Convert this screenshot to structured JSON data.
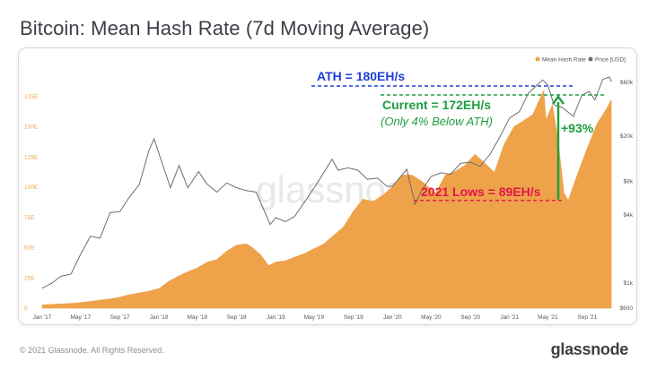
{
  "page": {
    "title": "Bitcoin: Mean Hash Rate (7d Moving Average)",
    "copyright": "© 2021 Glassnode. All Rights Reserved.",
    "brand": "glassnode",
    "watermark": "glassnode"
  },
  "colors": {
    "hash_rate": "#eea24a",
    "price": "#6d6d6d",
    "ath": "#1f3fd6",
    "current": "#1e9e40",
    "lows": "#e0164a",
    "gain": "#1e9e40"
  },
  "chart_data": {
    "type": "area",
    "title": "Bitcoin: Mean Hash Rate (7d Moving Average)",
    "legend": {
      "placement": "top-right",
      "entries": [
        "Mean Hash Rate",
        "Price [USD]"
      ]
    },
    "x_ticks": [
      "Jan '17",
      "May '17",
      "Sep '17",
      "Jan '18",
      "May '18",
      "Sep '18",
      "Jan '19",
      "May '19",
      "Sep '19",
      "Jan '20",
      "May '20",
      "Sep '20",
      "Jan '21",
      "May '21",
      "Sep '21"
    ],
    "y_left": {
      "ticks": [
        "0",
        "25E",
        "50E",
        "75E",
        "100E",
        "125E",
        "150E",
        "175E"
      ],
      "range": [
        0,
        200
      ],
      "unit": "EH/s"
    },
    "y_right": {
      "ticks": [
        "$600",
        "$1k",
        "$4k",
        "$8k",
        "$20k",
        "$60k"
      ],
      "values": [
        600,
        1000,
        4000,
        8000,
        20000,
        60000
      ],
      "scale": "log"
    },
    "grid": false,
    "series": [
      {
        "name": "Mean Hash Rate",
        "axis": "left",
        "points": [
          [
            "2017-01-01",
            2.5
          ],
          [
            "2017-02-01",
            3
          ],
          [
            "2017-03-01",
            3.4
          ],
          [
            "2017-04-01",
            3.8
          ],
          [
            "2017-05-01",
            4.5
          ],
          [
            "2017-06-01",
            5.5
          ],
          [
            "2017-07-01",
            6.5
          ],
          [
            "2017-08-01",
            7.5
          ],
          [
            "2017-09-01",
            9
          ],
          [
            "2017-10-01",
            11
          ],
          [
            "2017-11-01",
            12.5
          ],
          [
            "2017-12-01",
            14
          ],
          [
            "2018-01-01",
            16
          ],
          [
            "2018-02-01",
            22
          ],
          [
            "2018-03-01",
            26
          ],
          [
            "2018-04-01",
            30
          ],
          [
            "2018-05-01",
            33
          ],
          [
            "2018-06-01",
            38
          ],
          [
            "2018-07-01",
            40
          ],
          [
            "2018-08-01",
            47
          ],
          [
            "2018-09-01",
            52
          ],
          [
            "2018-10-01",
            53
          ],
          [
            "2018-10-20",
            50
          ],
          [
            "2018-11-15",
            44
          ],
          [
            "2018-12-10",
            35
          ],
          [
            "2019-01-01",
            38
          ],
          [
            "2019-02-01",
            39
          ],
          [
            "2019-03-01",
            42
          ],
          [
            "2019-04-01",
            45
          ],
          [
            "2019-05-01",
            49
          ],
          [
            "2019-06-01",
            53
          ],
          [
            "2019-07-01",
            60
          ],
          [
            "2019-08-01",
            67
          ],
          [
            "2019-09-01",
            80
          ],
          [
            "2019-10-01",
            90
          ],
          [
            "2019-11-01",
            88
          ],
          [
            "2019-12-01",
            93
          ],
          [
            "2020-01-01",
            100
          ],
          [
            "2020-02-01",
            110
          ],
          [
            "2020-03-01",
            110
          ],
          [
            "2020-04-01",
            105
          ],
          [
            "2020-05-15",
            95
          ],
          [
            "2020-06-15",
            110
          ],
          [
            "2020-07-15",
            113
          ],
          [
            "2020-08-15",
            118
          ],
          [
            "2020-09-15",
            127
          ],
          [
            "2020-10-15",
            120
          ],
          [
            "2020-11-15",
            112
          ],
          [
            "2020-12-15",
            135
          ],
          [
            "2021-01-15",
            150
          ],
          [
            "2021-02-15",
            155
          ],
          [
            "2021-03-15",
            160
          ],
          [
            "2021-04-01",
            170
          ],
          [
            "2021-04-18",
            180
          ],
          [
            "2021-04-25",
            155
          ],
          [
            "2021-05-15",
            168
          ],
          [
            "2021-06-01",
            140
          ],
          [
            "2021-06-20",
            95
          ],
          [
            "2021-07-04",
            89
          ],
          [
            "2021-08-01",
            110
          ],
          [
            "2021-09-01",
            132
          ],
          [
            "2021-10-01",
            152
          ],
          [
            "2021-11-01",
            165
          ],
          [
            "2021-11-15",
            172
          ]
        ]
      },
      {
        "name": "Price [USD]",
        "axis": "right",
        "points": [
          [
            "2017-01-01",
            900
          ],
          [
            "2017-02-01",
            1000
          ],
          [
            "2017-03-01",
            1150
          ],
          [
            "2017-04-01",
            1200
          ],
          [
            "2017-05-01",
            1800
          ],
          [
            "2017-06-01",
            2600
          ],
          [
            "2017-07-01",
            2500
          ],
          [
            "2017-08-01",
            4200
          ],
          [
            "2017-09-01",
            4300
          ],
          [
            "2017-10-01",
            5800
          ],
          [
            "2017-11-01",
            7500
          ],
          [
            "2017-12-01",
            15000
          ],
          [
            "2017-12-17",
            19000
          ],
          [
            "2018-01-01",
            14000
          ],
          [
            "2018-02-06",
            7000
          ],
          [
            "2018-03-05",
            11000
          ],
          [
            "2018-04-01",
            7000
          ],
          [
            "2018-05-05",
            9700
          ],
          [
            "2018-06-01",
            7500
          ],
          [
            "2018-07-01",
            6400
          ],
          [
            "2018-08-01",
            7700
          ],
          [
            "2018-09-01",
            7000
          ],
          [
            "2018-10-01",
            6600
          ],
          [
            "2018-11-01",
            6400
          ],
          [
            "2018-12-15",
            3300
          ],
          [
            "2019-01-01",
            3800
          ],
          [
            "2019-02-01",
            3500
          ],
          [
            "2019-03-01",
            3900
          ],
          [
            "2019-04-01",
            5200
          ],
          [
            "2019-05-15",
            8000
          ],
          [
            "2019-06-26",
            12500
          ],
          [
            "2019-07-15",
            10000
          ],
          [
            "2019-08-15",
            10500
          ],
          [
            "2019-09-15",
            10000
          ],
          [
            "2019-10-15",
            8300
          ],
          [
            "2019-11-15",
            8500
          ],
          [
            "2019-12-15",
            7200
          ],
          [
            "2020-01-01",
            7200
          ],
          [
            "2020-02-15",
            10200
          ],
          [
            "2020-03-12",
            5000
          ],
          [
            "2020-04-01",
            6600
          ],
          [
            "2020-05-01",
            8800
          ],
          [
            "2020-06-01",
            9500
          ],
          [
            "2020-07-01",
            9200
          ],
          [
            "2020-08-01",
            11500
          ],
          [
            "2020-09-01",
            11800
          ],
          [
            "2020-10-01",
            10800
          ],
          [
            "2020-11-01",
            13800
          ],
          [
            "2020-12-01",
            19500
          ],
          [
            "2021-01-01",
            29000
          ],
          [
            "2021-02-01",
            33000
          ],
          [
            "2021-03-01",
            48000
          ],
          [
            "2021-04-14",
            63000
          ],
          [
            "2021-05-01",
            57000
          ],
          [
            "2021-05-20",
            38000
          ],
          [
            "2021-06-15",
            36000
          ],
          [
            "2021-07-20",
            30000
          ],
          [
            "2021-08-15",
            46000
          ],
          [
            "2021-09-07",
            50000
          ],
          [
            "2021-09-25",
            42000
          ],
          [
            "2021-10-20",
            64000
          ],
          [
            "2021-11-10",
            67000
          ],
          [
            "2021-11-15",
            61000
          ]
        ]
      }
    ],
    "annotations": [
      {
        "id": "ath",
        "text": "ATH = 180EH/s",
        "value": 180
      },
      {
        "id": "current",
        "text": "Current = 172EH/s",
        "subtext": "(Only 4% Below ATH)",
        "value": 172
      },
      {
        "id": "lows",
        "text": "2021 Lows = 89EH/s",
        "value": 89
      },
      {
        "id": "gain",
        "text": "+93%",
        "from": 89,
        "to": 172
      }
    ]
  }
}
